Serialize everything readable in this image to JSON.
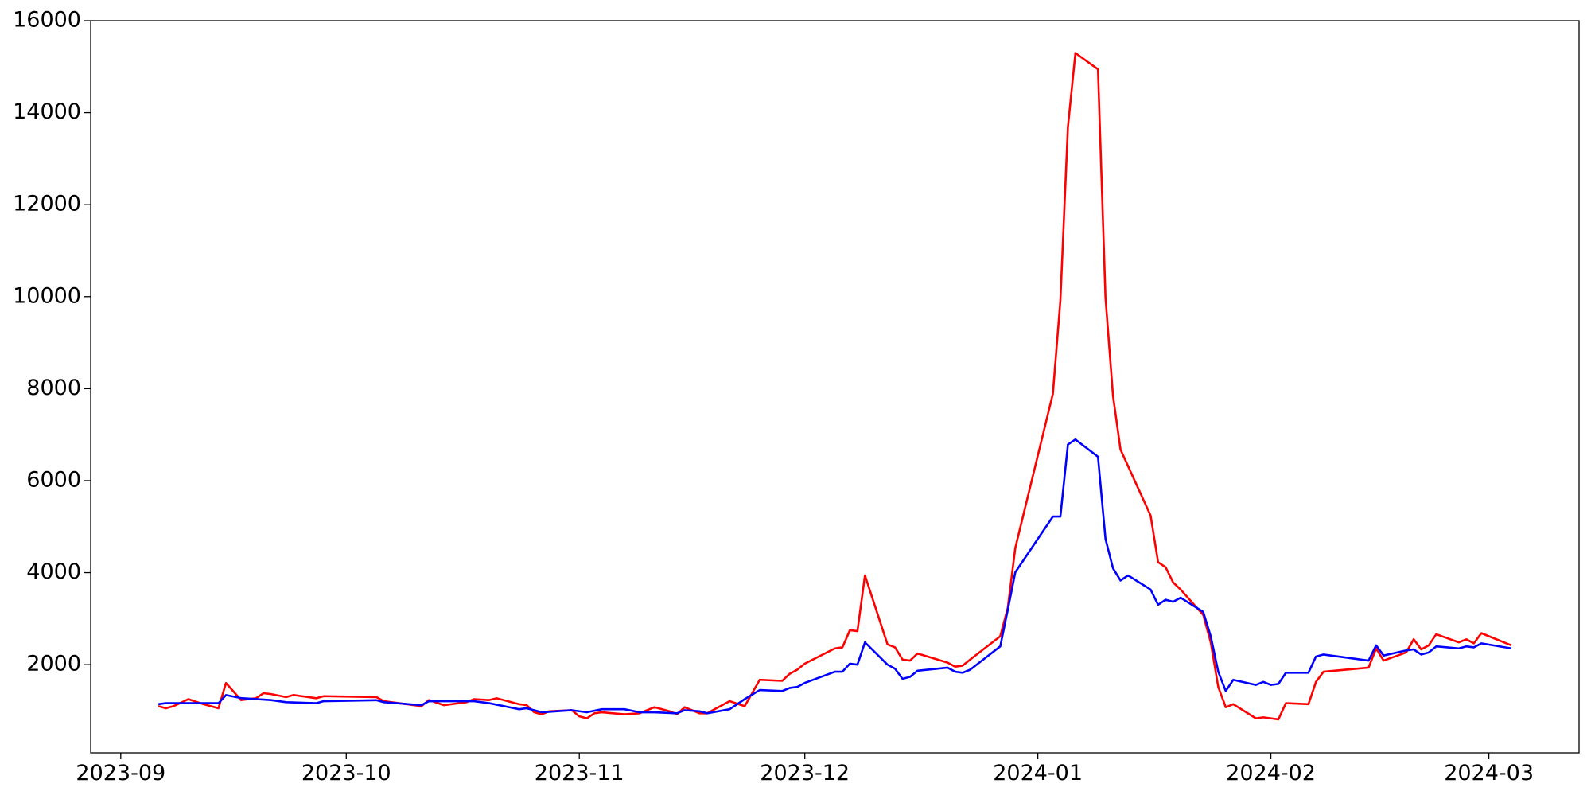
{
  "chart_data": {
    "type": "line",
    "xlim": [
      -4,
      194
    ],
    "xticks": [
      {
        "value": 0,
        "label": "2023-09"
      },
      {
        "value": 30,
        "label": "2023-10"
      },
      {
        "value": 61,
        "label": "2023-11"
      },
      {
        "value": 91,
        "label": "2023-12"
      },
      {
        "value": 122,
        "label": "2024-01"
      },
      {
        "value": 153,
        "label": "2024-02"
      },
      {
        "value": 182,
        "label": "2024-03"
      }
    ],
    "ylim": [
      82,
      16000
    ],
    "yticks": [
      2000,
      4000,
      6000,
      8000,
      10000,
      12000,
      14000,
      16000
    ],
    "series": [
      {
        "color": "red",
        "x": [
          5,
          6,
          7,
          9,
          11,
          13,
          14,
          16,
          18,
          19,
          20,
          22,
          23,
          26,
          27,
          34,
          35,
          40,
          41,
          43,
          46,
          47,
          49,
          50,
          53,
          54,
          55,
          56,
          57,
          60,
          61,
          62,
          63,
          64,
          67,
          69,
          71,
          73,
          74,
          75,
          77,
          78,
          81,
          83,
          85,
          88,
          89,
          90,
          91,
          95,
          96,
          97,
          98,
          99,
          102,
          103,
          104,
          105,
          106,
          110,
          111,
          112,
          113,
          117,
          118,
          119,
          124,
          125,
          126,
          127,
          130,
          131,
          132,
          133,
          137,
          138,
          139,
          140,
          141,
          144,
          145,
          146,
          147,
          148,
          151,
          152,
          154,
          155,
          158,
          159,
          160,
          166,
          167,
          168,
          171,
          172,
          173,
          174,
          175,
          178,
          179,
          180,
          181,
          185
        ],
        "values": [
          1096,
          1052,
          1096,
          1250,
          1140,
          1052,
          1600,
          1230,
          1270,
          1380,
          1360,
          1295,
          1340,
          1270,
          1315,
          1295,
          1206,
          1096,
          1230,
          1118,
          1184,
          1250,
          1230,
          1270,
          1140,
          1118,
          964,
          920,
          986,
          1008,
          876,
          832,
          942,
          964,
          920,
          942,
          1074,
          986,
          920,
          1074,
          942,
          942,
          1206,
          1096,
          1670,
          1648,
          1802,
          1890,
          2022,
          2353,
          2375,
          2750,
          2728,
          3940,
          2441,
          2375,
          2110,
          2088,
          2243,
          2044,
          1956,
          1978,
          2110,
          2617,
          3235,
          4536,
          7887,
          9916,
          13686,
          15297,
          14944,
          9982,
          7843,
          6675,
          5241,
          4227,
          4117,
          3786,
          3632,
          3081,
          2485,
          1515,
          1074,
          1140,
          832,
          854,
          810,
          1162,
          1140,
          1625,
          1846,
          1934,
          2353,
          2088,
          2265,
          2551,
          2331,
          2419,
          2661,
          2485,
          2551,
          2463,
          2684,
          2419
        ]
      },
      {
        "color": "blue",
        "x": [
          5,
          6,
          9,
          13,
          14,
          16,
          20,
          22,
          26,
          27,
          34,
          35,
          40,
          41,
          47,
          49,
          53,
          54,
          56,
          60,
          62,
          64,
          67,
          69,
          71,
          74,
          75,
          77,
          78,
          81,
          83,
          85,
          88,
          89,
          90,
          91,
          95,
          96,
          97,
          98,
          99,
          102,
          103,
          104,
          105,
          106,
          110,
          111,
          112,
          113,
          117,
          118,
          119,
          124,
          125,
          126,
          127,
          130,
          131,
          132,
          133,
          134,
          137,
          138,
          139,
          140,
          141,
          144,
          145,
          146,
          147,
          148,
          151,
          152,
          153,
          154,
          155,
          158,
          159,
          160,
          166,
          167,
          168,
          171,
          172,
          173,
          174,
          175,
          178,
          179,
          180,
          181,
          185
        ],
        "values": [
          1140,
          1162,
          1162,
          1162,
          1339,
          1273,
          1229,
          1184,
          1162,
          1206,
          1228,
          1184,
          1118,
          1206,
          1206,
          1162,
          1030,
          1052,
          964,
          1008,
          964,
          1030,
          1030,
          964,
          964,
          942,
          1008,
          986,
          942,
          1030,
          1250,
          1448,
          1427,
          1493,
          1515,
          1603,
          1846,
          1846,
          2022,
          2000,
          2485,
          2000,
          1912,
          1691,
          1735,
          1868,
          1934,
          1846,
          1824,
          1890,
          2397,
          3191,
          4007,
          5219,
          5219,
          6785,
          6895,
          6520,
          4734,
          4095,
          3830,
          3940,
          3632,
          3301,
          3411,
          3367,
          3455,
          3147,
          2617,
          1846,
          1427,
          1670,
          1559,
          1625,
          1559,
          1581,
          1824,
          1824,
          2176,
          2220,
          2088,
          2419,
          2198,
          2309,
          2331,
          2220,
          2265,
          2397,
          2353,
          2397,
          2375,
          2463,
          2353
        ]
      }
    ]
  }
}
